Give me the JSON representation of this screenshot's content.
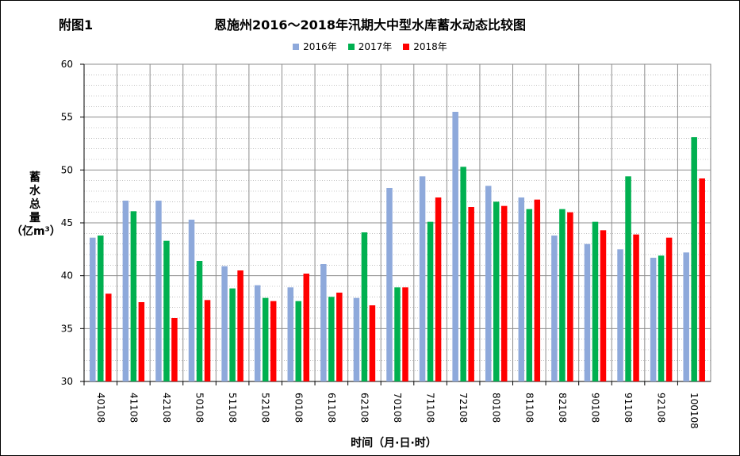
{
  "figure": {
    "label": "附图1",
    "title": "恩施州2016～2018年汛期大中型水库蓄水动态比较图",
    "ylabel_chars": [
      "蓄",
      "水",
      "总",
      "量"
    ],
    "ylabel_unit": "（亿m³）",
    "xlabel": "时间（月·日·时）"
  },
  "chart_data": {
    "type": "bar",
    "title": "恩施州2016～2018年汛期大中型水库蓄水动态比较图",
    "xlabel": "时间（月·日·时）",
    "ylabel": "蓄水总量（亿m³）",
    "ylim": [
      30,
      60
    ],
    "yticks": [
      30,
      35,
      40,
      45,
      50,
      55,
      60
    ],
    "grid": true,
    "legend_position": "top-center",
    "categories": [
      "40108",
      "41108",
      "42108",
      "50108",
      "51108",
      "52108",
      "60108",
      "61108",
      "62108",
      "70108",
      "71108",
      "72108",
      "80108",
      "81108",
      "82108",
      "90108",
      "91108",
      "92108",
      "100108"
    ],
    "series": [
      {
        "name": "2016年",
        "color": "#8EA9DB",
        "values": [
          43.6,
          47.1,
          47.1,
          45.3,
          40.9,
          39.1,
          38.9,
          41.1,
          37.9,
          48.3,
          49.4,
          55.5,
          48.5,
          47.4,
          43.8,
          43.0,
          42.5,
          41.7,
          42.2
        ]
      },
      {
        "name": "2017年",
        "color": "#00B050",
        "values": [
          43.8,
          46.1,
          43.3,
          41.4,
          38.8,
          37.9,
          37.6,
          38.0,
          44.1,
          38.9,
          45.1,
          50.3,
          47.0,
          46.3,
          46.3,
          45.1,
          49.4,
          41.9,
          53.1
        ]
      },
      {
        "name": "2018年",
        "color": "#FF0000",
        "values": [
          38.3,
          37.5,
          36.0,
          37.7,
          40.5,
          37.6,
          40.2,
          38.4,
          37.2,
          38.9,
          47.4,
          46.5,
          46.6,
          47.2,
          46.0,
          44.3,
          43.9,
          43.6,
          49.2
        ]
      }
    ]
  }
}
